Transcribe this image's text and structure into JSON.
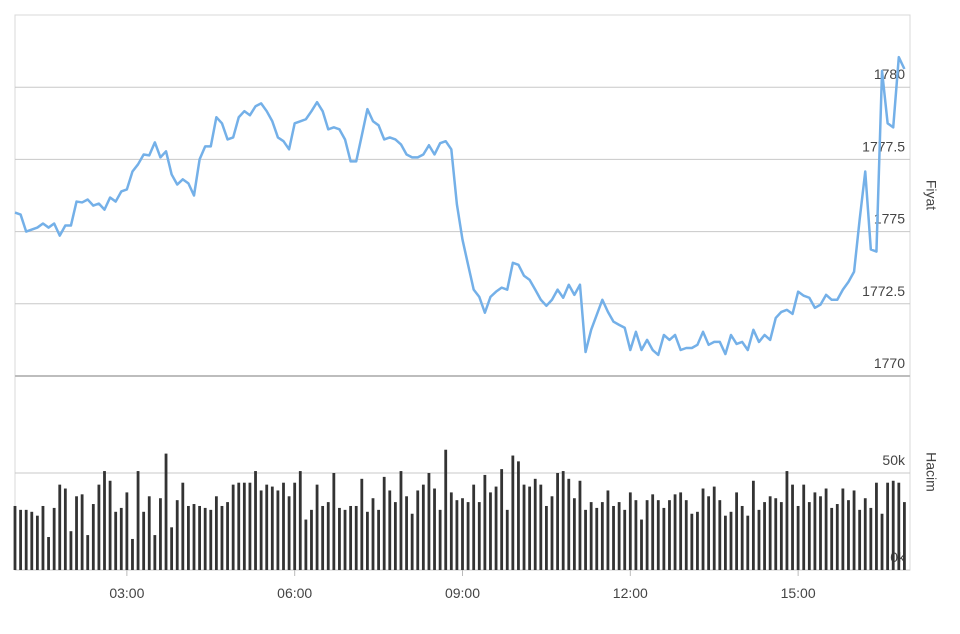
{
  "chart_data": {
    "type": "line",
    "ylabel": "Fiyat",
    "y2label": "Hacim",
    "grid": true,
    "x": [
      1,
      1.1,
      1.2,
      1.3,
      1.4,
      1.5,
      1.6,
      1.7,
      1.8,
      1.9,
      2,
      2.1,
      2.2,
      2.3,
      2.4,
      2.5,
      2.6,
      2.7,
      2.8,
      2.9,
      3,
      3.1,
      3.2,
      3.3,
      3.4,
      3.5,
      3.6,
      3.7,
      3.8,
      3.9,
      4,
      4.1,
      4.2,
      4.3,
      4.4,
      4.5,
      4.6,
      4.7,
      4.8,
      4.9,
      5,
      5.1,
      5.2,
      5.3,
      5.4,
      5.5,
      5.6,
      5.7,
      5.8,
      5.9,
      6,
      6.1,
      6.2,
      6.3,
      6.4,
      6.5,
      6.6,
      6.7,
      6.8,
      6.9,
      7,
      7.1,
      7.2,
      7.3,
      7.4,
      7.5,
      7.6,
      7.7,
      7.8,
      7.9,
      8,
      8.1,
      8.2,
      8.3,
      8.4,
      8.5,
      8.6,
      8.7,
      8.8,
      8.9,
      9,
      9.1,
      9.2,
      9.3,
      9.4,
      9.5,
      9.6,
      9.7,
      9.8,
      9.9,
      10,
      10.1,
      10.2,
      10.3,
      10.4,
      10.5,
      10.6,
      10.7,
      10.8,
      10.9,
      11,
      11.1,
      11.2,
      11.3,
      11.4,
      11.5,
      11.6,
      11.7,
      11.8,
      11.9,
      12,
      12.1,
      12.2,
      12.3,
      12.4,
      12.5,
      12.6,
      12.7,
      12.8,
      12.9,
      13,
      13.1,
      13.2,
      13.3,
      13.4,
      13.5,
      13.6,
      13.7,
      13.8,
      13.9,
      14,
      14.1,
      14.2,
      14.3,
      14.4,
      14.5,
      14.6,
      14.7,
      14.8,
      14.9,
      15,
      15.1,
      15.2,
      15.3,
      15.4,
      15.5,
      15.6,
      15.7,
      15.8,
      15.9,
      16,
      16.1,
      16.2,
      16.3,
      16.4,
      16.5,
      16.6,
      16.7,
      16.8,
      16.9
    ],
    "xlim": [
      1,
      17
    ],
    "xticks": [
      {
        "value": 3,
        "label": "03:00"
      },
      {
        "value": 6,
        "label": "06:00"
      },
      {
        "value": 9,
        "label": "09:00"
      },
      {
        "value": 12,
        "label": "12:00"
      },
      {
        "value": 15,
        "label": "15:00"
      }
    ],
    "ylim": [
      1770,
      1782.5
    ],
    "yticks": [
      1770,
      1772.5,
      1775,
      1777.5,
      1780
    ],
    "y2lim": [
      0,
      100000
    ],
    "y2ticks": [
      {
        "value": 0,
        "label": "0k"
      },
      {
        "value": 50000,
        "label": "50k"
      }
    ],
    "series": [
      {
        "color": "#74b0e8",
        "values": [
          1775.66,
          1775.59,
          1775.0,
          1775.07,
          1775.14,
          1775.28,
          1775.14,
          1775.28,
          1774.86,
          1775.21,
          1775.21,
          1776.04,
          1776.01,
          1776.11,
          1775.9,
          1775.97,
          1775.76,
          1776.18,
          1776.04,
          1776.39,
          1776.46,
          1777.08,
          1777.33,
          1777.67,
          1777.64,
          1778.09,
          1777.57,
          1777.78,
          1776.98,
          1776.63,
          1776.81,
          1776.67,
          1776.25,
          1777.5,
          1777.95,
          1777.95,
          1778.96,
          1778.75,
          1778.19,
          1778.26,
          1778.96,
          1779.17,
          1779.03,
          1779.34,
          1779.44,
          1779.17,
          1778.82,
          1778.26,
          1778.13,
          1777.85,
          1778.75,
          1778.82,
          1778.89,
          1779.17,
          1779.48,
          1779.17,
          1778.54,
          1778.61,
          1778.54,
          1778.19,
          1777.43,
          1777.43,
          1778.33,
          1779.24,
          1778.82,
          1778.68,
          1778.19,
          1778.26,
          1778.19,
          1778.02,
          1777.67,
          1777.57,
          1777.57,
          1777.67,
          1777.99,
          1777.67,
          1778.06,
          1778.13,
          1777.85,
          1775.94,
          1774.72,
          1773.85,
          1772.99,
          1772.74,
          1772.19,
          1772.74,
          1772.92,
          1773.06,
          1772.99,
          1773.92,
          1773.85,
          1773.47,
          1773.33,
          1772.99,
          1772.64,
          1772.43,
          1772.64,
          1772.99,
          1772.71,
          1773.16,
          1772.81,
          1773.16,
          1770.83,
          1771.6,
          1772.12,
          1772.64,
          1772.22,
          1771.88,
          1771.77,
          1771.67,
          1770.9,
          1771.53,
          1770.9,
          1771.25,
          1770.9,
          1770.73,
          1771.42,
          1771.25,
          1771.42,
          1770.9,
          1770.97,
          1770.97,
          1771.08,
          1771.53,
          1771.08,
          1771.18,
          1771.18,
          1770.76,
          1771.42,
          1771.11,
          1771.18,
          1770.9,
          1771.6,
          1771.18,
          1771.42,
          1771.25,
          1772.01,
          1772.22,
          1772.29,
          1772.15,
          1772.92,
          1772.78,
          1772.71,
          1772.36,
          1772.47,
          1772.81,
          1772.64,
          1772.64,
          1772.99,
          1773.26,
          1773.61,
          1775.42,
          1777.08,
          1774.38,
          1774.31,
          1780.56,
          1778.75,
          1778.61,
          1781.04,
          1780.63
        ]
      },
      {
        "type": "bar",
        "axis": "y2",
        "color": "#333333",
        "values": [
          33000,
          31000,
          31000,
          30000,
          28000,
          33000,
          17000,
          32000,
          44000,
          42000,
          20000,
          38000,
          39000,
          18000,
          34000,
          44000,
          51000,
          46000,
          30000,
          32000,
          40000,
          16000,
          51000,
          30000,
          38000,
          18000,
          37000,
          60000,
          22000,
          36000,
          45000,
          33000,
          34000,
          33000,
          32000,
          31000,
          38000,
          33000,
          35000,
          44000,
          45000,
          45000,
          45000,
          51000,
          41000,
          44000,
          43000,
          41000,
          45000,
          38000,
          45000,
          51000,
          26000,
          31000,
          44000,
          33000,
          35000,
          50000,
          32000,
          31000,
          33000,
          33000,
          47000,
          30000,
          37000,
          31000,
          48000,
          41000,
          35000,
          51000,
          38000,
          29000,
          41000,
          44000,
          50000,
          42000,
          31000,
          62000,
          40000,
          36000,
          37000,
          35000,
          44000,
          35000,
          49000,
          40000,
          43000,
          52000,
          31000,
          59000,
          56000,
          44000,
          43000,
          47000,
          44000,
          33000,
          38000,
          50000,
          51000,
          47000,
          37000,
          46000,
          31000,
          35000,
          32000,
          35000,
          41000,
          33000,
          35000,
          31000,
          40000,
          36000,
          26000,
          36000,
          39000,
          36000,
          32000,
          36000,
          39000,
          40000,
          36000,
          29000,
          30000,
          42000,
          38000,
          43000,
          36000,
          28000,
          30000,
          40000,
          33000,
          28000,
          46000,
          31000,
          35000,
          38000,
          37000,
          35000,
          51000,
          44000,
          33000,
          44000,
          35000,
          40000,
          38000,
          42000,
          32000,
          34000,
          42000,
          36000,
          41000,
          31000,
          37000,
          32000,
          45000,
          29000,
          45000,
          46000,
          45000,
          35000
        ]
      }
    ]
  }
}
